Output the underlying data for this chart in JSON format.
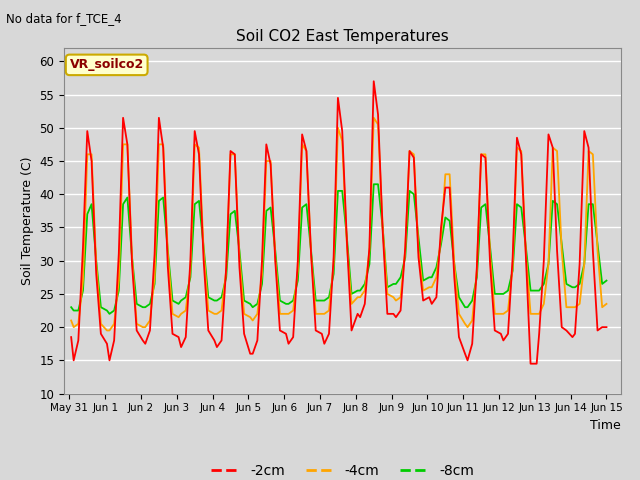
{
  "title": "Soil CO2 East Temperatures",
  "xlabel": "Time",
  "ylabel": "Soil Temperature (C)",
  "ylim": [
    10,
    62
  ],
  "annotation_text": "No data for f_TCE_4",
  "legend_box_text": "VR_soilco2",
  "legend_entries": [
    "-2cm",
    "-4cm",
    "-8cm"
  ],
  "legend_colors": [
    "#ff0000",
    "#ffa500",
    "#00cc00"
  ],
  "bg_color": "#d8d8d8",
  "plot_bg_color": "#d8d8d8",
  "grid_color": "#ffffff",
  "xtick_labels": [
    "May 31",
    "Jun 1",
    "Jun 2",
    "Jun 3",
    "Jun 4",
    "Jun 5",
    "Jun 6",
    "Jun 7",
    "Jun 8",
    "Jun 9",
    "Jun 10",
    "Jun 11",
    "Jun 12",
    "Jun 13",
    "Jun 14",
    "Jun 15"
  ],
  "xtick_positions": [
    0,
    1,
    2,
    3,
    4,
    5,
    6,
    7,
    8,
    9,
    10,
    11,
    12,
    13,
    14,
    15
  ],
  "ytick_positions": [
    10,
    15,
    20,
    25,
    30,
    35,
    40,
    45,
    50,
    55,
    60
  ],
  "series_2cm_x": [
    0.05,
    0.12,
    0.25,
    0.38,
    0.5,
    0.62,
    0.75,
    0.88,
    1.05,
    1.12,
    1.25,
    1.38,
    1.5,
    1.62,
    1.75,
    1.88,
    2.05,
    2.12,
    2.25,
    2.38,
    2.5,
    2.62,
    2.75,
    2.88,
    3.05,
    3.12,
    3.25,
    3.38,
    3.5,
    3.62,
    3.75,
    3.88,
    4.05,
    4.12,
    4.25,
    4.38,
    4.5,
    4.62,
    4.75,
    4.88,
    5.05,
    5.12,
    5.25,
    5.38,
    5.5,
    5.62,
    5.75,
    5.88,
    6.05,
    6.12,
    6.25,
    6.38,
    6.5,
    6.62,
    6.75,
    6.88,
    7.05,
    7.12,
    7.25,
    7.38,
    7.5,
    7.62,
    7.75,
    7.88,
    8.05,
    8.12,
    8.25,
    8.38,
    8.5,
    8.62,
    8.75,
    8.88,
    9.05,
    9.12,
    9.25,
    9.38,
    9.5,
    9.62,
    9.75,
    9.88,
    10.05,
    10.12,
    10.25,
    10.38,
    10.5,
    10.62,
    10.75,
    10.88,
    11.05,
    11.12,
    11.25,
    11.38,
    11.5,
    11.62,
    11.75,
    11.88,
    12.05,
    12.12,
    12.25,
    12.38,
    12.5,
    12.62,
    12.75,
    12.88,
    13.05,
    13.12,
    13.25,
    13.38,
    13.5,
    13.62,
    13.75,
    13.88,
    14.05,
    14.12,
    14.25,
    14.38,
    14.5,
    14.62,
    14.75,
    14.88,
    15.0
  ],
  "series_2cm_y": [
    18.5,
    15.0,
    18.0,
    32.0,
    49.5,
    45.0,
    28.0,
    19.0,
    17.5,
    15.0,
    18.0,
    31.0,
    51.5,
    47.5,
    29.5,
    19.5,
    18.0,
    17.5,
    19.5,
    31.0,
    51.5,
    47.0,
    29.0,
    19.0,
    18.5,
    17.0,
    18.5,
    30.0,
    49.5,
    46.0,
    30.0,
    19.5,
    18.0,
    17.0,
    18.0,
    29.0,
    46.5,
    46.0,
    29.0,
    19.0,
    16.0,
    16.0,
    18.0,
    30.0,
    47.5,
    44.5,
    30.0,
    19.5,
    19.0,
    17.5,
    18.5,
    30.0,
    49.0,
    46.5,
    31.0,
    19.5,
    19.0,
    17.5,
    19.0,
    30.5,
    54.5,
    49.5,
    33.0,
    19.5,
    22.0,
    21.5,
    23.5,
    32.0,
    57.0,
    52.0,
    34.5,
    22.0,
    22.0,
    21.5,
    22.5,
    32.0,
    46.5,
    45.5,
    30.5,
    24.0,
    24.5,
    23.5,
    24.5,
    35.0,
    41.0,
    41.0,
    27.5,
    18.5,
    16.0,
    15.0,
    17.5,
    29.0,
    46.0,
    45.5,
    29.5,
    19.5,
    19.0,
    18.0,
    19.0,
    30.5,
    48.5,
    46.0,
    30.5,
    14.5,
    14.5,
    19.0,
    30.0,
    49.0,
    47.0,
    31.5,
    20.0,
    19.5,
    18.5,
    19.0,
    29.5,
    49.5,
    47.0,
    31.5,
    19.5,
    20.0,
    20.0
  ],
  "series_4cm_x": [
    0.05,
    0.12,
    0.25,
    0.38,
    0.5,
    0.62,
    0.75,
    0.88,
    1.05,
    1.12,
    1.25,
    1.38,
    1.5,
    1.62,
    1.75,
    1.88,
    2.05,
    2.12,
    2.25,
    2.38,
    2.5,
    2.62,
    2.75,
    2.88,
    3.05,
    3.12,
    3.25,
    3.38,
    3.5,
    3.62,
    3.75,
    3.88,
    4.05,
    4.12,
    4.25,
    4.38,
    4.5,
    4.62,
    4.75,
    4.88,
    5.05,
    5.12,
    5.25,
    5.38,
    5.5,
    5.62,
    5.75,
    5.88,
    6.05,
    6.12,
    6.25,
    6.38,
    6.5,
    6.62,
    6.75,
    6.88,
    7.05,
    7.12,
    7.25,
    7.38,
    7.5,
    7.62,
    7.75,
    7.88,
    8.05,
    8.12,
    8.25,
    8.38,
    8.5,
    8.62,
    8.75,
    8.88,
    9.05,
    9.12,
    9.25,
    9.38,
    9.5,
    9.62,
    9.75,
    9.88,
    10.05,
    10.12,
    10.25,
    10.38,
    10.5,
    10.62,
    10.75,
    10.88,
    11.05,
    11.12,
    11.25,
    11.38,
    11.5,
    11.62,
    11.75,
    11.88,
    12.05,
    12.12,
    12.25,
    12.38,
    12.5,
    12.62,
    12.75,
    12.88,
    13.05,
    13.12,
    13.25,
    13.38,
    13.5,
    13.62,
    13.75,
    13.88,
    14.05,
    14.12,
    14.25,
    14.38,
    14.5,
    14.62,
    14.75,
    14.88,
    15.0
  ],
  "series_4cm_y": [
    21.0,
    20.0,
    20.5,
    27.0,
    46.0,
    46.0,
    29.5,
    20.5,
    19.5,
    19.5,
    20.5,
    27.0,
    47.5,
    47.5,
    30.5,
    20.5,
    20.0,
    20.0,
    21.0,
    27.5,
    47.5,
    47.5,
    31.0,
    22.0,
    21.5,
    22.0,
    22.5,
    28.5,
    47.5,
    47.0,
    31.5,
    22.5,
    22.0,
    22.0,
    22.5,
    28.5,
    46.0,
    46.0,
    30.5,
    22.0,
    21.5,
    21.0,
    22.0,
    28.0,
    45.0,
    45.0,
    30.5,
    22.0,
    22.0,
    22.0,
    22.5,
    28.5,
    47.5,
    46.5,
    31.0,
    22.0,
    22.0,
    22.0,
    22.5,
    29.5,
    50.0,
    48.0,
    32.5,
    23.5,
    24.5,
    24.5,
    25.5,
    31.5,
    51.5,
    50.5,
    35.0,
    25.0,
    24.5,
    24.0,
    24.5,
    31.5,
    46.5,
    46.0,
    31.5,
    25.5,
    26.0,
    26.0,
    27.5,
    33.5,
    43.0,
    43.0,
    29.5,
    22.0,
    20.5,
    20.0,
    21.0,
    28.5,
    46.0,
    46.0,
    31.0,
    22.0,
    22.0,
    22.0,
    22.5,
    29.0,
    47.0,
    46.5,
    31.0,
    22.0,
    22.0,
    22.0,
    23.5,
    29.5,
    47.0,
    46.5,
    31.5,
    23.0,
    23.0,
    23.0,
    23.5,
    29.5,
    46.5,
    46.0,
    31.5,
    23.0,
    23.5
  ],
  "series_8cm_x": [
    0.05,
    0.12,
    0.25,
    0.38,
    0.5,
    0.62,
    0.75,
    0.88,
    1.05,
    1.12,
    1.25,
    1.38,
    1.5,
    1.62,
    1.75,
    1.88,
    2.05,
    2.12,
    2.25,
    2.38,
    2.5,
    2.62,
    2.75,
    2.88,
    3.05,
    3.12,
    3.25,
    3.38,
    3.5,
    3.62,
    3.75,
    3.88,
    4.05,
    4.12,
    4.25,
    4.38,
    4.5,
    4.62,
    4.75,
    4.88,
    5.05,
    5.12,
    5.25,
    5.38,
    5.5,
    5.62,
    5.75,
    5.88,
    6.05,
    6.12,
    6.25,
    6.38,
    6.5,
    6.62,
    6.75,
    6.88,
    7.05,
    7.12,
    7.25,
    7.38,
    7.5,
    7.62,
    7.75,
    7.88,
    8.05,
    8.12,
    8.25,
    8.38,
    8.5,
    8.62,
    8.75,
    8.88,
    9.05,
    9.12,
    9.25,
    9.38,
    9.5,
    9.62,
    9.75,
    9.88,
    10.05,
    10.12,
    10.25,
    10.38,
    10.5,
    10.62,
    10.75,
    10.88,
    11.05,
    11.12,
    11.25,
    11.38,
    11.5,
    11.62,
    11.75,
    11.88,
    12.05,
    12.12,
    12.25,
    12.38,
    12.5,
    12.62,
    12.75,
    12.88,
    13.05,
    13.12,
    13.25,
    13.38,
    13.5,
    13.62,
    13.75,
    13.88,
    14.05,
    14.12,
    14.25,
    14.38,
    14.5,
    14.62,
    14.75,
    14.88,
    15.0
  ],
  "series_8cm_y": [
    23.0,
    22.5,
    22.5,
    25.5,
    37.0,
    38.5,
    30.0,
    23.0,
    22.5,
    22.0,
    22.5,
    25.5,
    38.5,
    39.5,
    30.5,
    23.5,
    23.0,
    23.0,
    23.5,
    26.5,
    39.0,
    39.5,
    31.5,
    24.0,
    23.5,
    24.0,
    24.5,
    27.5,
    38.5,
    39.0,
    32.0,
    24.5,
    24.0,
    24.0,
    24.5,
    27.5,
    37.0,
    37.5,
    31.5,
    24.0,
    23.5,
    23.0,
    23.5,
    26.5,
    37.5,
    38.0,
    31.5,
    24.0,
    23.5,
    23.5,
    24.0,
    27.0,
    38.0,
    38.5,
    31.5,
    24.0,
    24.0,
    24.0,
    24.5,
    28.0,
    40.5,
    40.5,
    33.5,
    25.0,
    25.5,
    25.5,
    26.5,
    29.5,
    41.5,
    41.5,
    35.0,
    26.0,
    26.5,
    26.5,
    27.5,
    30.5,
    40.5,
    40.0,
    33.5,
    27.0,
    27.5,
    27.5,
    29.0,
    32.5,
    36.5,
    36.0,
    29.5,
    24.5,
    23.0,
    23.0,
    24.0,
    27.5,
    38.0,
    38.5,
    32.0,
    25.0,
    25.0,
    25.0,
    25.5,
    28.5,
    38.5,
    38.0,
    32.0,
    25.5,
    25.5,
    25.5,
    26.5,
    29.5,
    39.0,
    38.5,
    32.5,
    26.5,
    26.0,
    26.0,
    26.5,
    29.5,
    38.5,
    38.5,
    32.5,
    26.5,
    27.0
  ]
}
